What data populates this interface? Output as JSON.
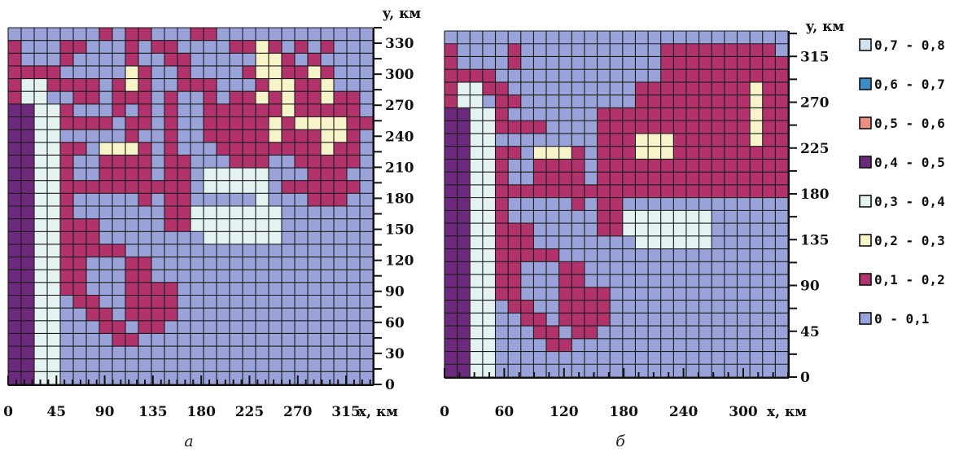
{
  "chart_data": [
    {
      "type": "heatmap",
      "panel_label": "а",
      "xlabel": "x, км",
      "ylabel": "y, км",
      "x_ticks": [
        "0",
        "45",
        "90",
        "135",
        "180",
        "225",
        "270",
        "315"
      ],
      "y_ticks": [
        "0",
        "30",
        "60",
        "90",
        "120",
        "150",
        "180",
        "210",
        "240",
        "270",
        "300",
        "330"
      ],
      "xlim": [
        0,
        340
      ],
      "ylim": [
        0,
        345
      ],
      "grid": true,
      "color_classes": [
        3,
        4,
        5,
        6,
        7,
        8,
        9
      ],
      "rows_top_to_bottom": [
        "0000000101100011000000000000",
        "1000110001011000011210101000",
        "1000100001001100000221010000",
        "1111000002100100001221121000",
        "1331111012100111000122112000",
        "1330011011101001011212112110",
        "4433100010101001111112111110",
        "4433111101101001111121222211",
        "4433000001001001111121112210",
        "4433110222101000111111112110",
        "4433100111101100011100111110",
        "4433100111101103333300011100",
        "4433111111111103333301111110",
        "4433100000101100000300011100",
        "4433100000001133333330000000",
        "4433111000001133333330000000",
        "4433111000000003333330000000",
        "4433111110000000000000000000",
        "4433110001100000000000000000",
        "4433110001100000000000000000",
        "4433110001111000000000000000",
        "4433011001111000000000000000",
        "4433001101111000000000000000",
        "4433000110110000000000000000",
        "4433000011000000000000000000",
        "4433000000000000000000000000",
        "4433000000000000000000000000",
        "4433000000000000000000000000"
      ]
    },
    {
      "type": "heatmap",
      "panel_label": "б",
      "xlabel": "x, км",
      "ylabel": "y, км",
      "x_ticks": [
        "0",
        "60",
        "120",
        "180",
        "240",
        "300"
      ],
      "y_ticks": [
        "0",
        "45",
        "90",
        "135",
        "180",
        "225",
        "270",
        "315"
      ],
      "xlim": [
        0,
        345
      ],
      "ylim": [
        0,
        340
      ],
      "grid": true,
      "legend": {
        "position": "right",
        "entries": [
          "0,7 - 0,8",
          "0,6 - 0,7",
          "0,5 - 0,6",
          "0,4 - 0,5",
          "0,3 - 0,4",
          "0,2 - 0,3",
          "0,1 - 0,2",
          "0 - 0,1"
        ],
        "colors": [
          "#cfe4ee",
          "#3a8dc8",
          "#f08c86",
          "#6d2a7d",
          "#e4f2f2",
          "#f6f4c8",
          "#b2336c",
          "#9aa3d9"
        ]
      },
      "rows_top_to_bottom": [
        "000000000000000000000000000",
        "100001000000000001111111110",
        "100001000000000001111111111",
        "111100000000000001111111111",
        "133110000000000111111111211",
        "133011000000000111111111211",
        "443310000000111111111111211",
        "443311110000111111111111211",
        "443300000000111222111111211",
        "443311022210111222111111111",
        "443310011110111111111111111",
        "443310011110111111111111111",
        "443311111111111111111111111",
        "443310000010110000000000000",
        "443310000000113333333000000",
        "443311100000113333333000000",
        "443311100000000333333000000",
        "443311111000000000000000000",
        "443311000110000000000000000",
        "443311000110000000000000000",
        "443311000111100000000000000",
        "443301100111100000000000000",
        "443300110111100000000000000",
        "443300011011000000000000000",
        "443300001100000000000000000",
        "443300000000000000000000000",
        "443300000000000000000000000"
      ]
    }
  ]
}
